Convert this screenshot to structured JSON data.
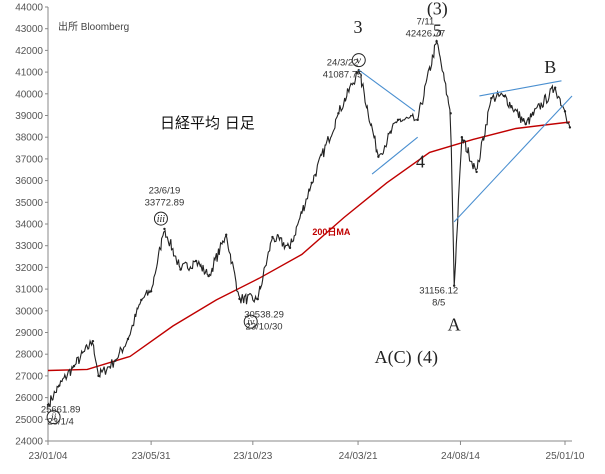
{
  "chart_data": {
    "type": "line",
    "title": "日経平均 日足",
    "source": "出所 Bloomberg",
    "ylim": [
      24000,
      44000
    ],
    "ytick_step": 1000,
    "grid": false,
    "x_tick_labels": [
      "23/01/04",
      "23/05/31",
      "23/10/23",
      "24/03/21",
      "24/08/14",
      "25/01/10"
    ],
    "x_tick_dates": [
      "2023-01-04",
      "2023-05-31",
      "2023-10-23",
      "2024-03-21",
      "2024-08-14",
      "2025-01-10"
    ],
    "x_range": [
      "2023-01-04",
      "2025-01-20"
    ],
    "series": [
      {
        "name": "",
        "color": "#222222",
        "points": [
          [
            "2023-01-04",
            25661.89
          ],
          [
            "2023-01-20",
            26550
          ],
          [
            "2023-02-10",
            27450
          ],
          [
            "2023-03-09",
            28600
          ],
          [
            "2023-03-17",
            27000
          ],
          [
            "2023-04-10",
            27700
          ],
          [
            "2023-04-28",
            28700
          ],
          [
            "2023-05-17",
            30500
          ],
          [
            "2023-05-31",
            30900
          ],
          [
            "2023-06-19",
            33772.89
          ],
          [
            "2023-07-12",
            31900
          ],
          [
            "2023-08-03",
            32300
          ],
          [
            "2023-08-21",
            31600
          ],
          [
            "2023-09-15",
            33500
          ],
          [
            "2023-10-04",
            30550
          ],
          [
            "2023-10-30",
            30538.29
          ],
          [
            "2023-11-20",
            33400
          ],
          [
            "2023-12-15",
            32900
          ],
          [
            "2024-01-15",
            35900
          ],
          [
            "2024-02-22",
            39100
          ],
          [
            "2024-03-22",
            41087.75
          ],
          [
            "2024-04-19",
            37100
          ],
          [
            "2024-05-17",
            38800
          ],
          [
            "2024-06-14",
            38800
          ],
          [
            "2024-07-11",
            42426.77
          ],
          [
            "2024-07-31",
            39100
          ],
          [
            "2024-08-05",
            31156.12
          ],
          [
            "2024-08-16",
            38000
          ],
          [
            "2024-09-06",
            36400
          ],
          [
            "2024-09-27",
            39800
          ],
          [
            "2024-10-15",
            39900
          ],
          [
            "2024-11-15",
            38600
          ],
          [
            "2024-12-27",
            40280
          ],
          [
            "2025-01-10",
            39190
          ],
          [
            "2025-01-17",
            38450
          ]
        ]
      },
      {
        "name": "200日MA",
        "color": "#c00000",
        "points": [
          [
            "2023-01-04",
            27250
          ],
          [
            "2023-03-01",
            27300
          ],
          [
            "2023-05-01",
            27900
          ],
          [
            "2023-07-01",
            29300
          ],
          [
            "2023-09-01",
            30500
          ],
          [
            "2023-11-01",
            31500
          ],
          [
            "2024-01-01",
            32600
          ],
          [
            "2024-03-01",
            34300
          ],
          [
            "2024-05-01",
            35900
          ],
          [
            "2024-07-01",
            37300
          ],
          [
            "2024-09-01",
            37900
          ],
          [
            "2024-11-01",
            38400
          ],
          [
            "2025-01-17",
            38700
          ]
        ]
      }
    ],
    "trend_lines": [
      {
        "color": "#4a8fd0",
        "points": [
          [
            "2024-03-22",
            41100
          ],
          [
            "2024-06-10",
            39200
          ]
        ]
      },
      {
        "color": "#4a8fd0",
        "points": [
          [
            "2024-04-10",
            36300
          ],
          [
            "2024-06-14",
            38000
          ]
        ]
      },
      {
        "color": "#4a8fd0",
        "points": [
          [
            "2024-09-10",
            39900
          ],
          [
            "2025-01-05",
            40600
          ]
        ]
      },
      {
        "color": "#4a8fd0",
        "points": [
          [
            "2024-08-05",
            34100
          ],
          [
            "2025-01-20",
            39900
          ]
        ]
      }
    ],
    "annotations": [
      {
        "type": "roman",
        "label": "ii",
        "x": "2023-01-12",
        "y": 25100
      },
      {
        "type": "text",
        "lines": [
          "25661.89",
          "23/1/4"
        ],
        "x": "2023-01-22",
        "y": 25320
      },
      {
        "type": "roman",
        "label": "iii",
        "x": "2023-06-14",
        "y": 34250
      },
      {
        "type": "text",
        "lines": [
          "23/6/19",
          "33772.89"
        ],
        "x": "2023-06-19",
        "y": 35400
      },
      {
        "type": "roman",
        "label": "iv",
        "x": "2023-10-20",
        "y": 29500
      },
      {
        "type": "text",
        "lines": [
          "30538.29",
          "23/10/30"
        ],
        "x": "2023-11-08",
        "y": 29700
      },
      {
        "type": "big",
        "label": "3",
        "x": "2024-03-21",
        "y": 42800
      },
      {
        "type": "roman",
        "label": "v",
        "x": "2024-03-22",
        "y": 41550
      },
      {
        "type": "text",
        "lines": [
          "24/3/22",
          "41087.75"
        ],
        "x": "2024-02-28",
        "y": 41300
      },
      {
        "type": "big",
        "label": "4",
        "x": "2024-06-18",
        "y": 36600
      },
      {
        "type": "text",
        "lines": [
          "7/11",
          "42426.77"
        ],
        "x": "2024-06-25",
        "y": 43200
      },
      {
        "type": "big",
        "label": "(3)",
        "x": "2024-07-12",
        "y": 43650
      },
      {
        "type": "big",
        "label": "5",
        "x": "2024-07-12",
        "y": 42650
      },
      {
        "type": "text",
        "lines": [
          "31156.12",
          "8/5"
        ],
        "x": "2024-07-14",
        "y": 30800
      },
      {
        "type": "big",
        "label": "A",
        "x": "2024-08-05",
        "y": 29100
      },
      {
        "type": "big",
        "label": "B",
        "x": "2024-12-20",
        "y": 40950
      },
      {
        "type": "ma",
        "label": "200日MA",
        "x": "2024-02-12",
        "y": 33500
      },
      {
        "type": "big",
        "label": "A(C)",
        "x": "2024-05-10",
        "y": 27600
      },
      {
        "type": "big",
        "label": "(4)",
        "x": "2024-06-28",
        "y": 27600
      }
    ]
  }
}
